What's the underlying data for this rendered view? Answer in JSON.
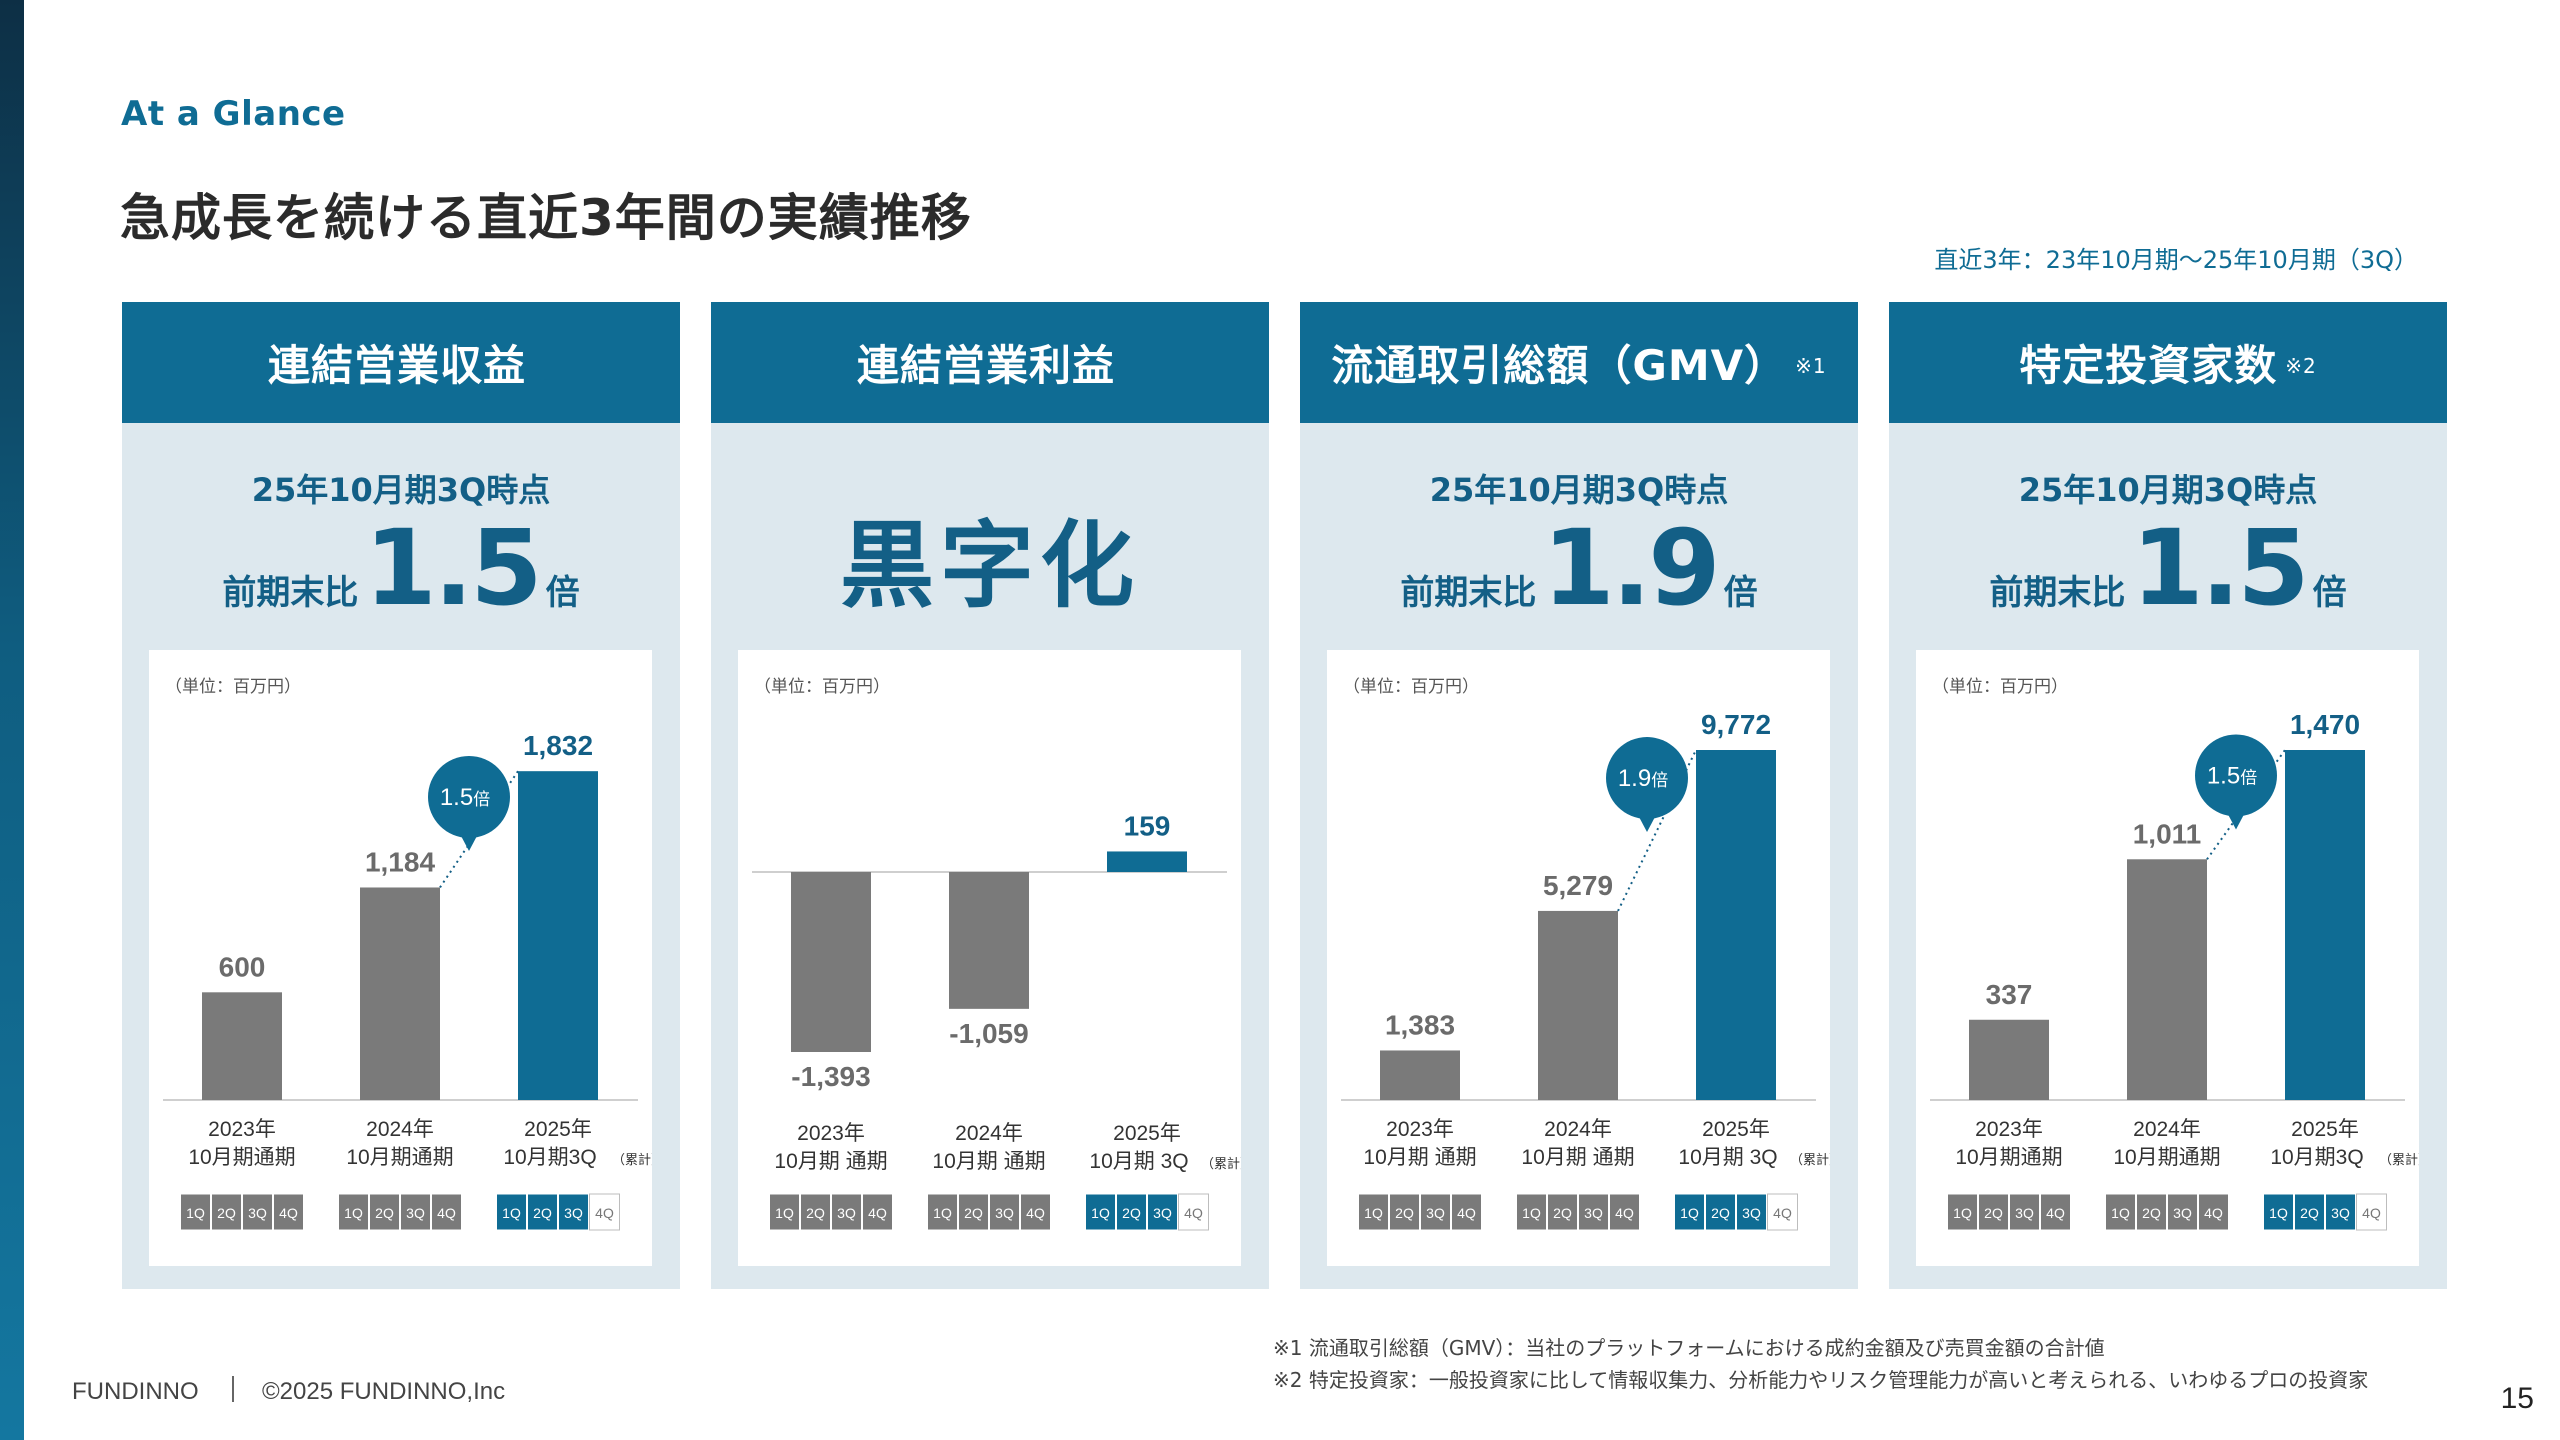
{
  "eyebrow": "At a Glance",
  "title": "急成長を続ける直近3年間の実績推移",
  "period_note": "直近3年：23年10月期〜25年10月期（3Q）",
  "colors": {
    "primary": "#0f6c94",
    "gray": "#7a7a7a",
    "panel_bg": "#dde8ee",
    "dark_text": "#135f86"
  },
  "panels": [
    {
      "header": "連結営業収益",
      "header_note": "",
      "kpi_sub": "25年10月期3Q時点",
      "kpi_prefix": "前期末比",
      "kpi_value": "1.5",
      "kpi_suffix": "倍",
      "kpi_big": ""
    },
    {
      "header": "連結営業利益",
      "header_note": "",
      "kpi_sub": "",
      "kpi_prefix": "",
      "kpi_value": "",
      "kpi_suffix": "",
      "kpi_big": "黒字化"
    },
    {
      "header": "流通取引総額（GMV）",
      "header_note": "※1",
      "kpi_sub": "25年10月期3Q時点",
      "kpi_prefix": "前期末比",
      "kpi_value": "1.9",
      "kpi_suffix": "倍",
      "kpi_big": ""
    },
    {
      "header": "特定投資家数",
      "header_note": "※2",
      "kpi_sub": "25年10月期3Q時点",
      "kpi_prefix": "前期末比",
      "kpi_value": "1.5",
      "kpi_suffix": "倍",
      "kpi_big": ""
    }
  ],
  "chart_data": [
    {
      "type": "bar",
      "unit_label": "（単位：百万円）",
      "categories": [
        [
          "2023年",
          "10月期通期"
        ],
        [
          "2024年",
          "10月期通期"
        ],
        [
          "2025年",
          "10月期3Q"
        ]
      ],
      "category_note": "（累計）",
      "values": [
        600,
        1184,
        1832
      ],
      "value_labels": [
        "600",
        "1,184",
        "1,832"
      ],
      "bar_colors": [
        "#7a7a7a",
        "#7a7a7a",
        "#0f6c94"
      ],
      "growth_badge": {
        "value": "1.5",
        "suffix": "倍"
      },
      "ylim": [
        0,
        1950
      ],
      "quarters": [
        "1Q",
        "2Q",
        "3Q",
        "4Q"
      ],
      "quarters_filled": [
        4,
        4,
        3
      ]
    },
    {
      "type": "bar",
      "unit_label": "（単位：百万円）",
      "categories": [
        [
          "2023年",
          "10月期 通期"
        ],
        [
          "2024年",
          "10月期 通期"
        ],
        [
          "2025年",
          "10月期 3Q"
        ]
      ],
      "category_note": "（累計）",
      "values": [
        -1393,
        -1059,
        159
      ],
      "value_labels": [
        "-1,393",
        "-1,059",
        "159"
      ],
      "bar_colors": [
        "#7a7a7a",
        "#7a7a7a",
        "#0f6c94"
      ],
      "ylim": [
        -1393,
        159
      ],
      "quarters": [
        "1Q",
        "2Q",
        "3Q",
        "4Q"
      ],
      "quarters_filled": [
        4,
        4,
        3
      ]
    },
    {
      "type": "bar",
      "unit_label": "（単位：百万円）",
      "categories": [
        [
          "2023年",
          "10月期 通期"
        ],
        [
          "2024年",
          "10月期 通期"
        ],
        [
          "2025年",
          "10月期 3Q"
        ]
      ],
      "category_note": "（累計）",
      "values": [
        1383,
        5279,
        9772
      ],
      "value_labels": [
        "1,383",
        "5,279",
        "9,772"
      ],
      "bar_colors": [
        "#7a7a7a",
        "#7a7a7a",
        "#0f6c94"
      ],
      "growth_badge": {
        "value": "1.9",
        "suffix": "倍"
      },
      "ylim": [
        0,
        9772
      ],
      "quarters": [
        "1Q",
        "2Q",
        "3Q",
        "4Q"
      ],
      "quarters_filled": [
        4,
        4,
        3
      ]
    },
    {
      "type": "bar",
      "unit_label": "（単位：百万円）",
      "categories": [
        [
          "2023年",
          "10月期通期"
        ],
        [
          "2024年",
          "10月期通期"
        ],
        [
          "2025年",
          "10月期3Q"
        ]
      ],
      "category_note": "（累計）",
      "values": [
        337,
        1011,
        1470
      ],
      "value_labels": [
        "337",
        "1,011",
        "1,470"
      ],
      "bar_colors": [
        "#7a7a7a",
        "#7a7a7a",
        "#0f6c94"
      ],
      "growth_badge": {
        "value": "1.5",
        "suffix": "倍"
      },
      "ylim": [
        0,
        1470
      ],
      "quarters": [
        "1Q",
        "2Q",
        "3Q",
        "4Q"
      ],
      "quarters_filled": [
        4,
        4,
        3
      ]
    }
  ],
  "footnotes": [
    "※1 流通取引総額（GMV）：当社のプラットフォームにおける成約金額及び売買金額の合計値",
    "※2 特定投資家：一般投資家に比して情報収集力、分析能力やリスク管理能力が高いと考えられる、いわゆるプロの投資家"
  ],
  "footer": {
    "brand": "FUNDINNO",
    "copyright": "©2025 FUNDINNO,Inc"
  },
  "page_number": "15"
}
